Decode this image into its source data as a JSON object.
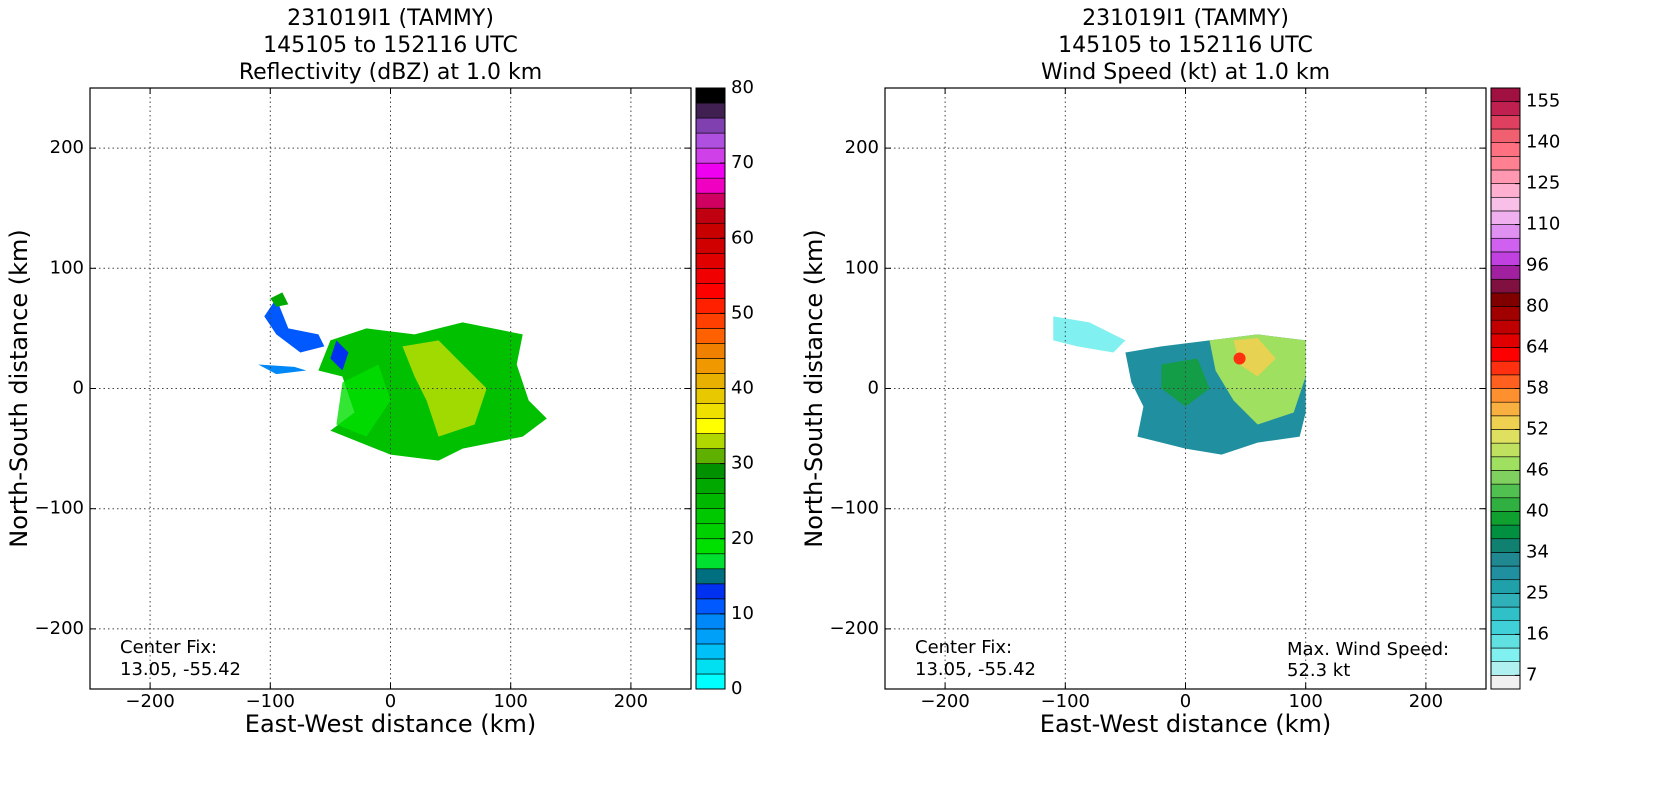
{
  "chart_data": [
    {
      "type": "heatmap",
      "title": [
        "231019I1 (TAMMY)",
        "145105 to 152116 UTC",
        "Reflectivity (dBZ) at 1.0 km"
      ],
      "xlabel": "East-West distance (km)",
      "ylabel": "North-South distance (km)",
      "xlim": [
        -250,
        250
      ],
      "ylim": [
        -250,
        250
      ],
      "xticks": [
        {
          "value": -200,
          "label": "−200"
        },
        {
          "value": -100,
          "label": "−100"
        },
        0,
        100,
        200
      ],
      "yticks": [
        {
          "value": -200,
          "label": "−200"
        },
        {
          "value": -100,
          "label": "−100"
        },
        0,
        100,
        200
      ],
      "grid": true,
      "annotations": [
        "Center Fix:",
        "13.05, -55.42"
      ],
      "colorbar": {
        "scale": "linear",
        "lim": [
          0,
          80
        ],
        "ticks": [
          0,
          10,
          20,
          30,
          40,
          50,
          60,
          70,
          80
        ],
        "colors": [
          "#00ffff",
          "#00e0f0",
          "#00c0f8",
          "#00a0f8",
          "#0088f8",
          "#0058ff",
          "#0030f0",
          "#007080",
          "#00e030",
          "#00e000",
          "#00d000",
          "#00c800",
          "#00b800",
          "#00a800",
          "#009000",
          "#60b000",
          "#b0d800",
          "#ffff00",
          "#f0e000",
          "#e8c800",
          "#e8b000",
          "#f09800",
          "#f08000",
          "#ff6000",
          "#ff4000",
          "#ff2000",
          "#ff0000",
          "#f00000",
          "#e00000",
          "#d00000",
          "#c80000",
          "#c00010",
          "#d00060",
          "#f000c0",
          "#f000f0",
          "#d040e8",
          "#b050e0",
          "#8040b0",
          "#402050",
          "#000000"
        ]
      }
    },
    {
      "type": "heatmap",
      "title": [
        "231019I1 (TAMMY)",
        "145105 to 152116 UTC",
        "Wind Speed (kt) at 1.0 km"
      ],
      "xlabel": "East-West distance (km)",
      "ylabel": "North-South distance (km)",
      "xlim": [
        -250,
        250
      ],
      "ylim": [
        -250,
        250
      ],
      "xticks": [
        {
          "value": -200,
          "label": "−200"
        },
        {
          "value": -100,
          "label": "−100"
        },
        0,
        100,
        200
      ],
      "yticks": [
        {
          "value": -200,
          "label": "−200"
        },
        {
          "value": -100,
          "label": "−100"
        },
        0,
        100,
        200
      ],
      "grid": true,
      "annotations": [
        "Center Fix:",
        "13.05, -55.42",
        "Max. Wind Speed:",
        "52.3 kt"
      ],
      "colorbar": {
        "scale": "uniform",
        "ticks": [
          7,
          16,
          25,
          34,
          40,
          46,
          52,
          58,
          64,
          80,
          96,
          110,
          125,
          140,
          155
        ],
        "colors": [
          "#f0f0f0",
          "#b0f0f0",
          "#80f0f0",
          "#60e0e0",
          "#40d0d8",
          "#30c0c8",
          "#30b0b8",
          "#20a0a8",
          "#2090a0",
          "#208890",
          "#108070",
          "#009040",
          "#10a030",
          "#30b040",
          "#50c050",
          "#80d060",
          "#a0e060",
          "#c0e060",
          "#e0e060",
          "#f0d050",
          "#f8b040",
          "#ff9030",
          "#ff6020",
          "#ff3010",
          "#ff0000",
          "#e00000",
          "#c00000",
          "#a00000",
          "#800000",
          "#801040",
          "#a020a0",
          "#c040e0",
          "#d060f0",
          "#e090f0",
          "#f0b0f0",
          "#f8c0e8",
          "#ffb0d0",
          "#ff98b0",
          "#ff8090",
          "#ff7080",
          "#f06070",
          "#e04060",
          "#c02050",
          "#a01040"
        ]
      }
    }
  ]
}
